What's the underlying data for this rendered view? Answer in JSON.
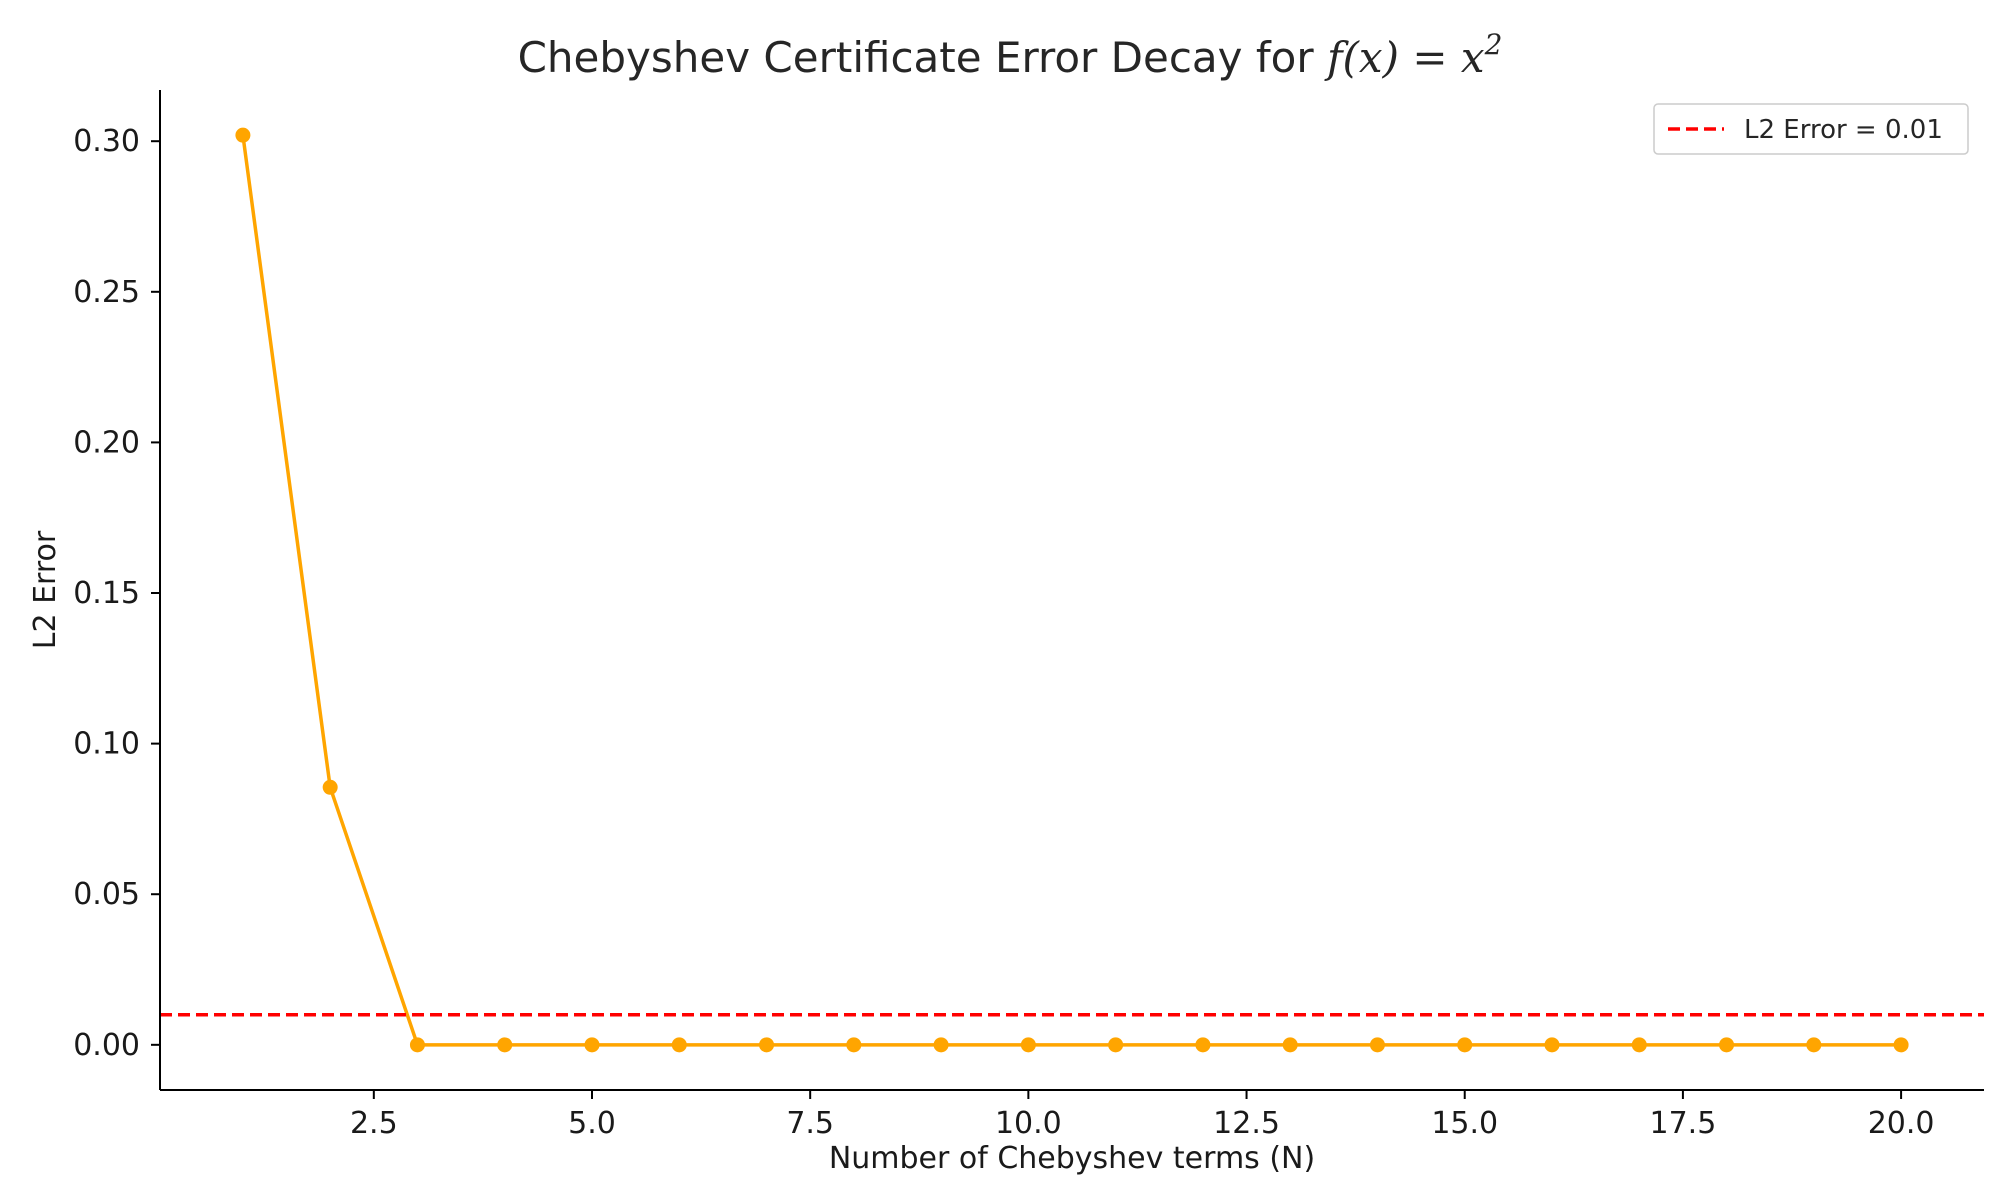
{
  "chart_data": {
    "type": "line",
    "title_prefix": "Chebyshev Certificate Error Decay for ",
    "title_math": "f(x) = x",
    "title_superscript": "2",
    "xlabel": "Number of Chebyshev terms (N)",
    "ylabel": "L2 Error",
    "xlim": [
      0.05,
      20.95
    ],
    "ylim": [
      -0.015,
      0.317
    ],
    "x_ticks": [
      "2.5",
      "5.0",
      "7.5",
      "10.0",
      "12.5",
      "15.0",
      "17.5",
      "20.0"
    ],
    "y_ticks": [
      "0.00",
      "0.05",
      "0.10",
      "0.15",
      "0.20",
      "0.25",
      "0.30"
    ],
    "grid": false,
    "legend_position": "top-right",
    "series": [
      {
        "color": "#FFA500",
        "marker": "circle",
        "x": [
          1,
          2,
          3,
          4,
          5,
          6,
          7,
          8,
          9,
          10,
          11,
          12,
          13,
          14,
          15,
          16,
          17,
          18,
          19,
          20
        ],
        "y": [
          0.302,
          0.0855,
          0,
          0,
          0,
          0,
          0,
          0,
          0,
          0,
          0,
          0,
          0,
          0,
          0,
          0,
          0,
          0,
          0,
          0
        ]
      }
    ],
    "reference_line": {
      "name": "L2 Error = 0.01",
      "y": 0.01,
      "color": "#FF0000",
      "style": "dashed"
    }
  }
}
